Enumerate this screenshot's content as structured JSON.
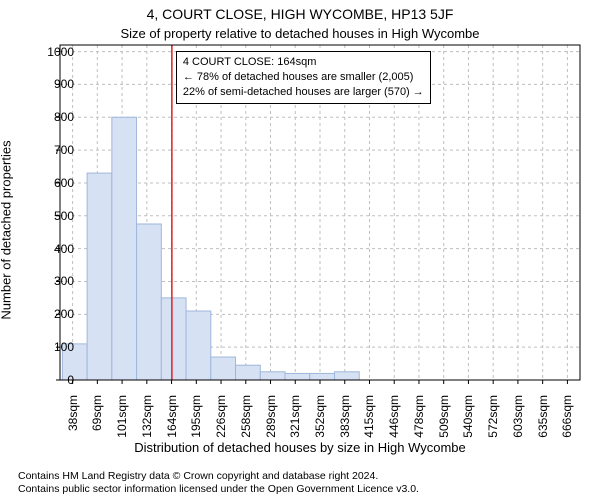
{
  "title": "4, COURT CLOSE, HIGH WYCOMBE, HP13 5JF",
  "subtitle": "Size of property relative to detached houses in High Wycombe",
  "ylabel": "Number of detached properties",
  "xlabel": "Distribution of detached houses by size in High Wycombe",
  "footer_line1": "Contains HM Land Registry data © Crown copyright and database right 2024.",
  "footer_line2": "Contains public sector information licensed under the Open Government Licence v3.0.",
  "annotation": {
    "line1": "4 COURT CLOSE: 164sqm",
    "line2": "← 78% of detached houses are smaller (2,005)",
    "line3": "22% of semi-detached houses are larger (570) →"
  },
  "chart": {
    "type": "histogram",
    "background_color": "#ffffff",
    "border_color": "#000000",
    "grid_color": "#bfbfbf",
    "bar_fill": "#d6e1f3",
    "bar_stroke": "#9fb7da",
    "marker_line_color": "#e02020",
    "marker_x_value": 164,
    "x_min": 22,
    "x_max": 682,
    "x_tick_start": 38,
    "x_tick_step": 31.4,
    "x_tick_labels": [
      "38sqm",
      "69sqm",
      "101sqm",
      "132sqm",
      "164sqm",
      "195sqm",
      "226sqm",
      "258sqm",
      "289sqm",
      "321sqm",
      "352sqm",
      "383sqm",
      "415sqm",
      "446sqm",
      "478sqm",
      "509sqm",
      "540sqm",
      "572sqm",
      "603sqm",
      "635sqm",
      "666sqm"
    ],
    "y_min": 0,
    "y_max": 1020,
    "y_tick_step": 100,
    "y_tick_max": 1000,
    "bar_x_start": 25,
    "bar_width": 31.4,
    "values": [
      110,
      630,
      800,
      475,
      250,
      210,
      70,
      45,
      25,
      20,
      20,
      25,
      0,
      0,
      0,
      0,
      0,
      0,
      0,
      0,
      0
    ],
    "title_fontsize": 14,
    "subtitle_fontsize": 13,
    "label_fontsize": 13,
    "tick_fontsize": 12,
    "footer_fontsize": 10.5,
    "annotation_fontsize": 11
  }
}
